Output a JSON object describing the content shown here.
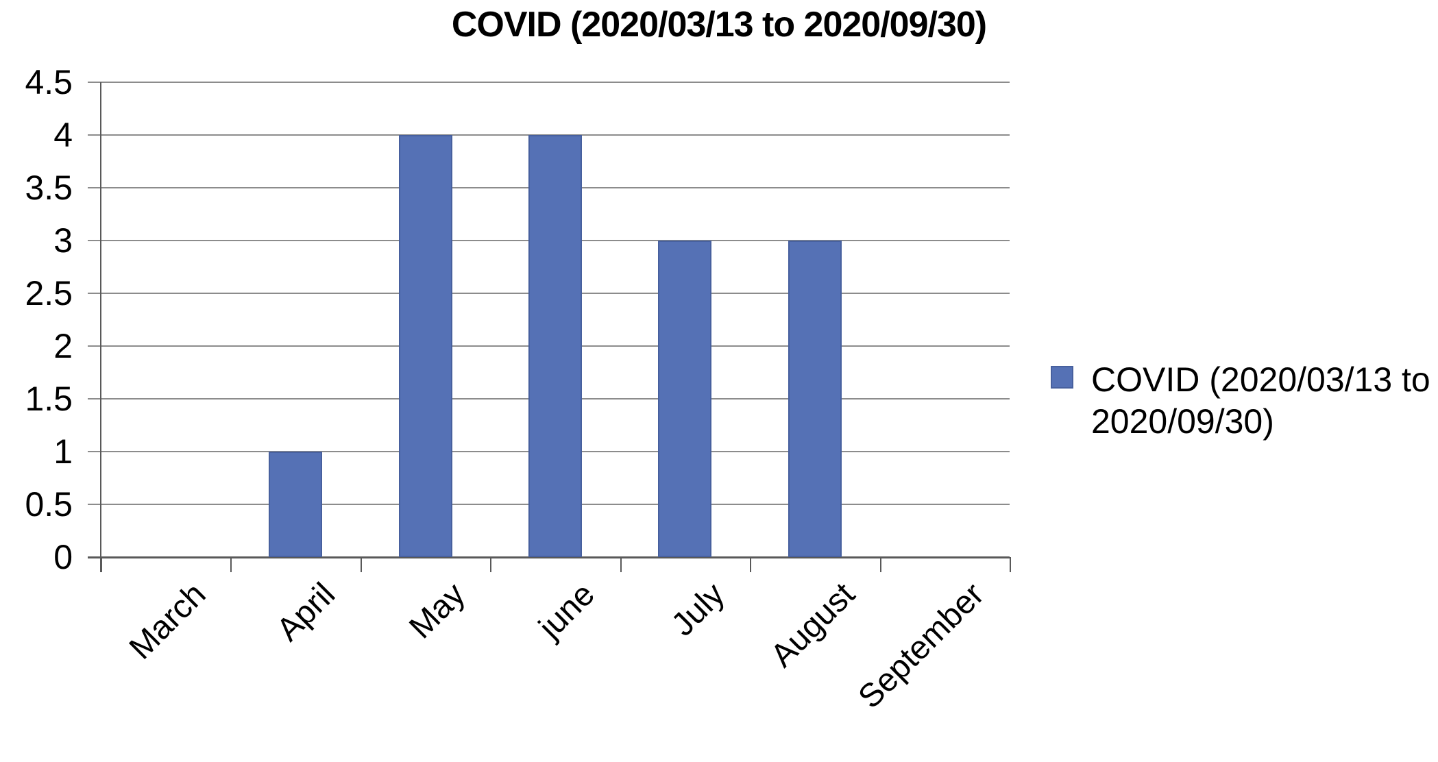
{
  "title": "COVID (2020/03/13 to 2020/09/30)",
  "legend": {
    "label": "COVID (2020/03/13 to 2020/09/30)",
    "marker_color": "#5571b5",
    "position": "right"
  },
  "chart_data": {
    "type": "bar",
    "title": "COVID (2020/03/13 to 2020/09/30)",
    "series_name": "COVID (2020/03/13 to 2020/09/30)",
    "categories": [
      "March",
      "April",
      "May",
      "june",
      "July",
      "August",
      "September"
    ],
    "values": [
      0,
      1,
      4,
      4,
      3,
      3,
      0
    ],
    "xlabel": "",
    "ylabel": "",
    "ylim": [
      0,
      4.5
    ],
    "ytick_step": 0.5,
    "ytick_labels": [
      "0",
      "0.5",
      "1",
      "1.5",
      "2",
      "2.5",
      "3",
      "3.5",
      "4",
      "4.5"
    ],
    "grid": "horizontal",
    "legend_position": "right",
    "x_label_rotation_deg": -45,
    "bar_color": "#5571b5",
    "bar_border_color": "#47609e",
    "gridline_color": "#8c8c8c",
    "axis_color": "#595959",
    "text_color": "#000000"
  }
}
